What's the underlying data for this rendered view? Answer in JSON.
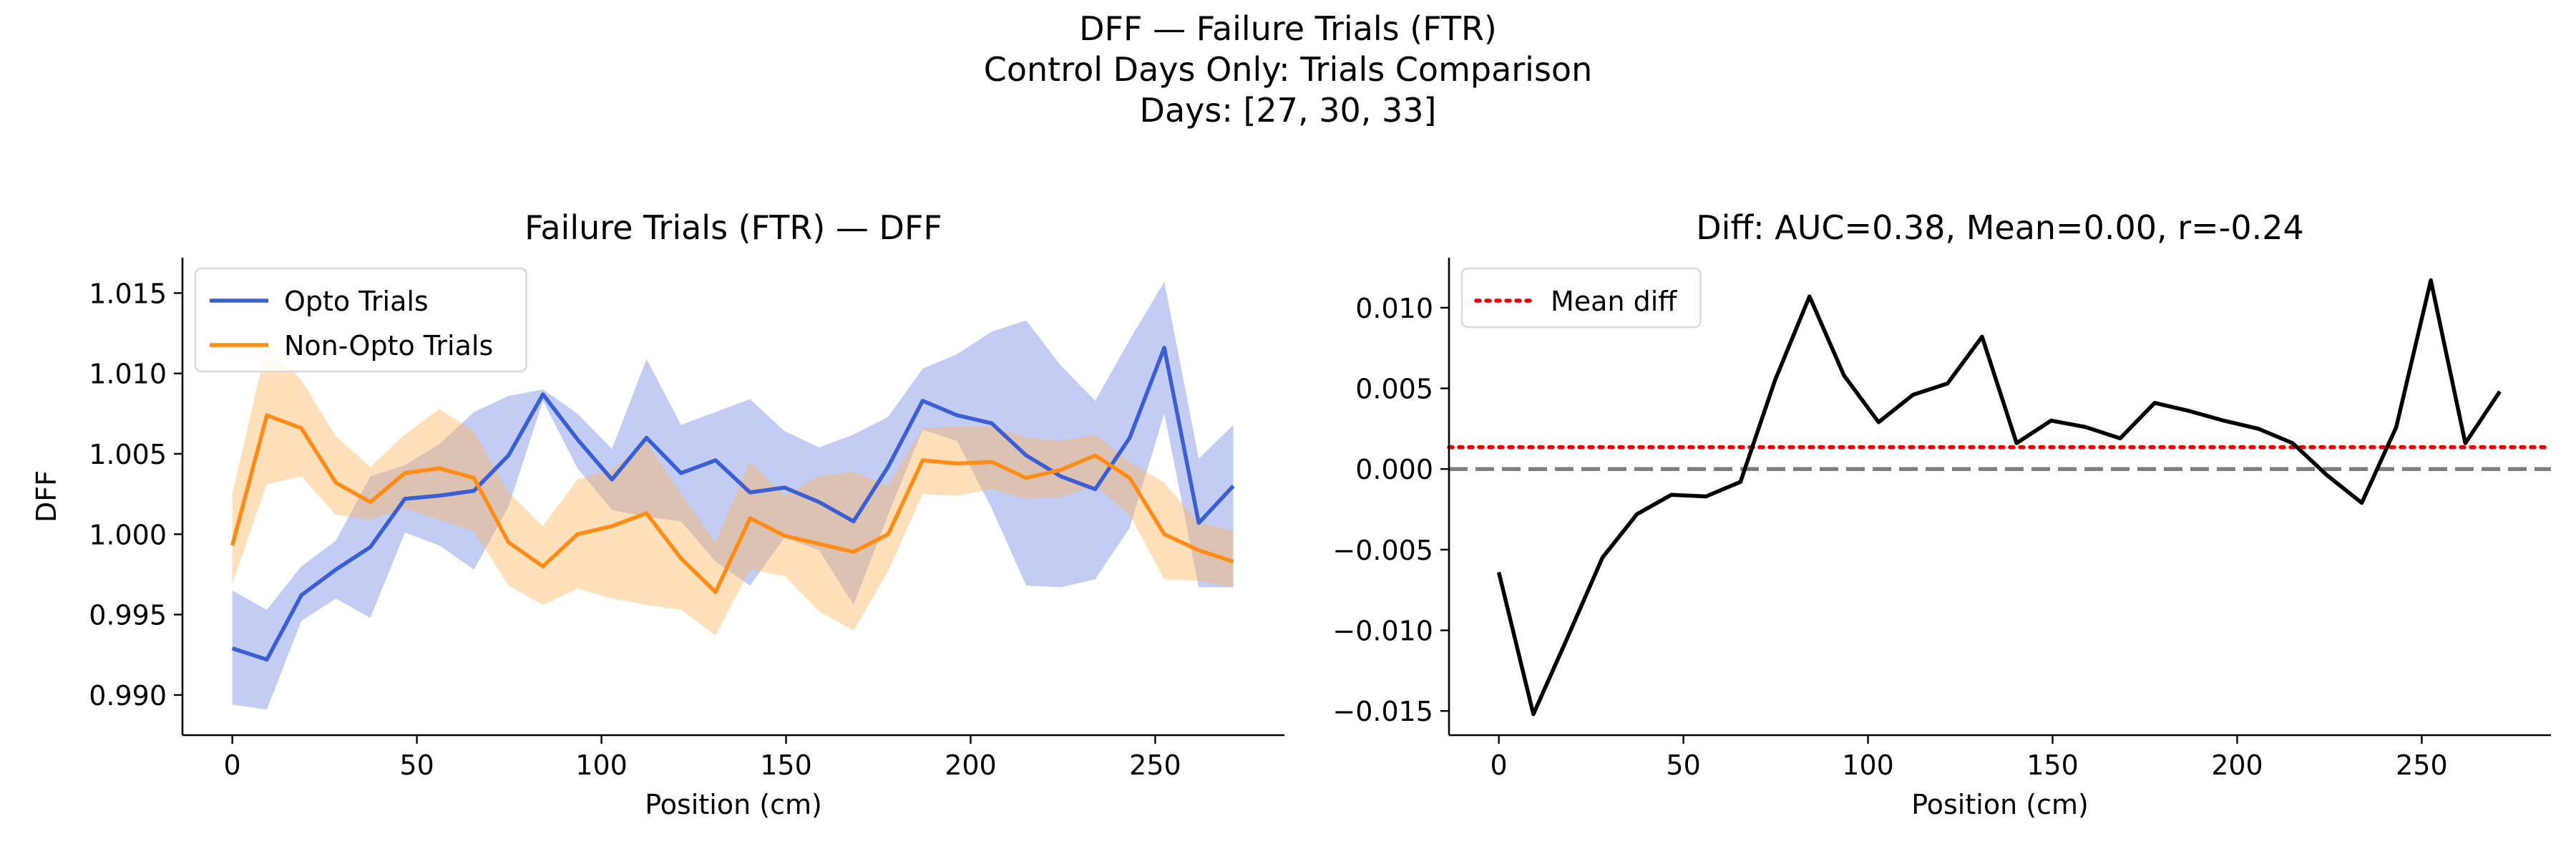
{
  "figure": {
    "suptitle": [
      "DFF — Failure Trials (FTR)",
      "Control Days Only: Trials Comparison",
      "Days: [27, 30, 33]"
    ]
  },
  "chart_data": [
    {
      "type": "line",
      "title": "Failure Trials (FTR) — DFF",
      "xlabel": "Position (cm)",
      "ylabel": "DFF",
      "xlim": [
        -13.5,
        285
      ],
      "ylim": [
        0.9875,
        1.0172
      ],
      "xticks": [
        0,
        50,
        100,
        150,
        200,
        250
      ],
      "yticks": [
        0.99,
        0.995,
        1.0,
        1.005,
        1.01,
        1.015
      ],
      "ytick_labels": [
        "0.990",
        "0.995",
        "1.000",
        "1.005",
        "1.010",
        "1.015"
      ],
      "grid": false,
      "legend": "top-left",
      "x": [
        0,
        9.35,
        18.7,
        28.05,
        37.4,
        46.75,
        56.1,
        65.45,
        74.8,
        84.15,
        93.5,
        102.85,
        112.2,
        121.55,
        130.9,
        140.25,
        149.6,
        158.95,
        168.3,
        177.65,
        187,
        196.35,
        205.7,
        215.05,
        224.4,
        233.75,
        243.1,
        252.45,
        261.8,
        271.15
      ],
      "series": [
        {
          "name": "Opto Trials",
          "color": "#3b5fd3",
          "band_color": "#6f86e0",
          "values": [
            0.9929,
            0.9922,
            0.9962,
            0.9978,
            0.9992,
            1.0022,
            1.0024,
            1.0027,
            1.0049,
            1.0087,
            1.0059,
            1.0034,
            1.006,
            1.0038,
            1.0046,
            1.0026,
            1.0029,
            1.002,
            1.0008,
            1.0042,
            1.0083,
            1.0074,
            1.0069,
            1.0049,
            1.0036,
            1.0028,
            1.006,
            1.0116,
            1.0007,
            1.003
          ],
          "lower": [
            0.9894,
            0.9891,
            0.9946,
            0.996,
            0.9948,
            1.0001,
            0.9993,
            0.9978,
            1.0017,
            1.0083,
            1.0041,
            1.0015,
            1.0011,
            1.0008,
            0.9983,
            0.9968,
            0.9998,
            0.999,
            0.9956,
            1.0012,
            1.0065,
            1.0058,
            1.0016,
            0.9968,
            0.9967,
            0.9972,
            1.0004,
            1.0075,
            0.9967,
            0.9967
          ],
          "upper": [
            0.9965,
            0.9953,
            0.998,
            0.9996,
            1.0036,
            1.0043,
            1.0056,
            1.0076,
            1.0086,
            1.009,
            1.0075,
            1.0053,
            1.0109,
            1.0068,
            1.0076,
            1.0084,
            1.0064,
            1.0054,
            1.0062,
            1.0073,
            1.0103,
            1.0112,
            1.0126,
            1.0133,
            1.0105,
            1.0083,
            1.0121,
            1.0157,
            1.0047,
            1.0068
          ]
        },
        {
          "name": "Non-Opto Trials",
          "color": "#ff8c16",
          "band_color": "#ffb45e",
          "values": [
            0.9993,
            1.0074,
            1.0066,
            1.0032,
            1.002,
            1.0038,
            1.0041,
            1.0035,
            0.9995,
            0.998,
            1.0,
            1.0005,
            1.0013,
            0.9985,
            0.9964,
            1.001,
            0.9999,
            0.9994,
            0.9989,
            1.0,
            1.0046,
            1.0044,
            1.0045,
            1.0035,
            1.004,
            1.0049,
            1.0035,
            1.0,
            0.999,
            0.9983
          ],
          "lower": [
            0.9969,
            1.0031,
            1.0036,
            1.0012,
            1.0009,
            1.0016,
            1.0009,
            1.0002,
            0.9968,
            0.9956,
            0.9966,
            0.996,
            0.9956,
            0.9953,
            0.9937,
            0.9978,
            0.9974,
            0.9952,
            0.994,
            0.9977,
            1.0025,
            1.0024,
            1.0028,
            1.0022,
            1.0023,
            1.003,
            1.0012,
            0.9972,
            0.9971,
            0.9967
          ],
          "upper": [
            1.0025,
            1.0118,
            1.0096,
            1.0061,
            1.0042,
            1.0062,
            1.0078,
            1.0064,
            1.0026,
            1.0005,
            1.0034,
            1.004,
            1.0057,
            1.0025,
            0.9995,
            1.0045,
            1.0024,
            1.0036,
            1.0039,
            1.003,
            1.0066,
            1.0067,
            1.0067,
            1.006,
            1.0058,
            1.0062,
            1.0045,
            1.0032,
            1.0007,
            1.0002
          ]
        }
      ]
    },
    {
      "type": "line",
      "title": "Diff: AUC=0.38, Mean=0.00, r=-0.24",
      "xlabel": "Position (cm)",
      "ylabel": "",
      "xlim": [
        -13.5,
        285
      ],
      "ylim": [
        -0.0165,
        0.0131
      ],
      "xticks": [
        0,
        50,
        100,
        150,
        200,
        250
      ],
      "yticks": [
        -0.015,
        -0.01,
        -0.005,
        0.0,
        0.005,
        0.01
      ],
      "ytick_labels": [
        "−0.015",
        "−0.010",
        "−0.005",
        "0.000",
        "0.005",
        "0.010"
      ],
      "grid": false,
      "legend": "top-left",
      "x": [
        0,
        9.35,
        18.7,
        28.05,
        37.4,
        46.75,
        56.1,
        65.45,
        74.8,
        84.15,
        93.5,
        102.85,
        112.2,
        121.55,
        130.9,
        140.25,
        149.6,
        158.95,
        168.3,
        177.65,
        187,
        196.35,
        205.7,
        215.05,
        224.4,
        233.75,
        243.1,
        252.45,
        261.8,
        271.15
      ],
      "series": [
        {
          "color": "#000000",
          "values": [
            -0.0064,
            -0.0152,
            -0.0104,
            -0.0055,
            -0.0028,
            -0.0016,
            -0.0017,
            -0.0008,
            0.0055,
            0.0107,
            0.0058,
            0.0029,
            0.0046,
            0.0053,
            0.0082,
            0.0016,
            0.003,
            0.0026,
            0.0019,
            0.0041,
            0.0036,
            0.003,
            0.0025,
            0.0016,
            -0.0004,
            -0.0021,
            0.0026,
            0.0117,
            0.0016,
            0.0048
          ]
        }
      ],
      "reference_lines": [
        {
          "name": "Mean diff",
          "y": 0.00135,
          "color": "#ee0000",
          "style": "dotted"
        },
        {
          "y": 0.0,
          "color": "#7f7f7f",
          "style": "dashed"
        }
      ]
    }
  ]
}
